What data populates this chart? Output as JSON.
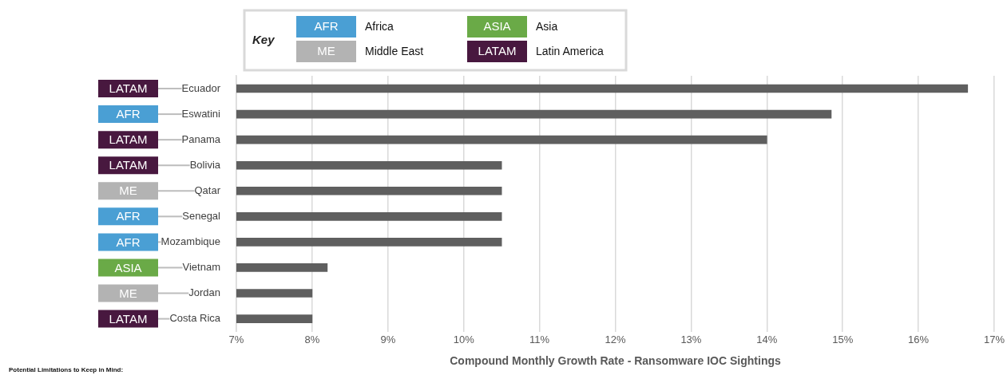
{
  "chart_data": {
    "type": "bar",
    "orientation": "horizontal",
    "xlabel": "Compound Monthly Growth Rate - Ransomware IOC Sightings",
    "categories": [
      "Ecuador",
      "Eswatini",
      "Panama",
      "Bolivia",
      "Qatar",
      "Senegal",
      "Mozambique",
      "Vietnam",
      "Jordan",
      "Costa Rica"
    ],
    "values": [
      16.65,
      14.85,
      14.0,
      10.5,
      10.5,
      10.5,
      10.5,
      8.2,
      8.0,
      8.0
    ],
    "color": "#5f5f5f",
    "xlim": [
      7,
      17
    ],
    "xticks": [
      {
        "value": 7,
        "label": "7%"
      },
      {
        "value": 8,
        "label": "8%"
      },
      {
        "value": 9,
        "label": "9%"
      },
      {
        "value": 10,
        "label": "10%"
      },
      {
        "value": 11,
        "label": "11%"
      },
      {
        "value": 12,
        "label": "12%"
      },
      {
        "value": 13,
        "label": "13%"
      },
      {
        "value": 14,
        "label": "14%"
      },
      {
        "value": 15,
        "label": "15%"
      },
      {
        "value": 16,
        "label": "16%"
      },
      {
        "value": 17,
        "label": "17%"
      }
    ],
    "grid": "x",
    "legend_title": "Key",
    "annotations": [
      "AFR",
      "Africa",
      "ASIA",
      "Asia",
      "ME",
      "Middle East",
      "LATAM",
      "Latin America",
      {
        "text": "LATAM",
        "y": "Ecuador"
      },
      {
        "text": "AFR",
        "y": "Eswatini"
      },
      {
        "text": "LATAM",
        "y": "Panama"
      },
      {
        "text": "LATAM",
        "y": "Bolivia"
      },
      {
        "text": "ME",
        "y": "Qatar"
      },
      {
        "text": "AFR",
        "y": "Senegal"
      },
      {
        "text": "AFR",
        "y": "Mozambique"
      },
      {
        "text": "ASIA",
        "y": "Vietnam"
      },
      {
        "text": "ME",
        "y": "Jordan"
      },
      {
        "text": "LATAM",
        "y": "Costa Rica"
      },
      "Potential Limitations to Keep in Mind:"
    ]
  }
}
